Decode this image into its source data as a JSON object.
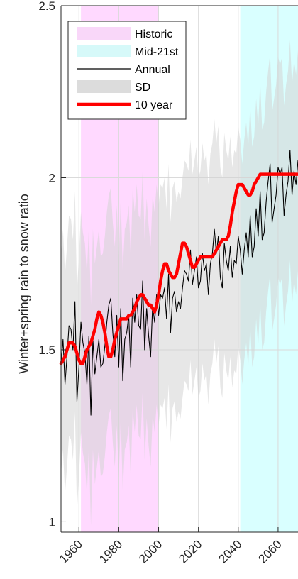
{
  "chart_data": {
    "type": "line",
    "title": "",
    "xlabel": "",
    "ylabel": "Winter+spring rain to snow ratio",
    "xlim": [
      1951,
      2070
    ],
    "ylim": [
      0.97,
      2.5
    ],
    "x_ticks": [
      1960,
      1980,
      2000,
      2020,
      2040,
      2060
    ],
    "x_tick_labels": [
      "1960",
      "1980",
      "2000",
      "2020",
      "2040",
      "2060"
    ],
    "y_ticks": [
      1,
      1.5,
      2,
      2.5
    ],
    "y_tick_labels": [
      "1",
      "1.5",
      "2",
      "2.5"
    ],
    "grid": true,
    "legend_position": "top-left",
    "legend": [
      {
        "key": "historic",
        "label": "Historic",
        "style": "patch",
        "color": "#f9d7f9"
      },
      {
        "key": "mid21",
        "label": "Mid-21st",
        "style": "patch",
        "color": "#d6f9f9"
      },
      {
        "key": "annual",
        "label": "Annual",
        "style": "line",
        "color": "#000000"
      },
      {
        "key": "sd",
        "label": "SD",
        "style": "patch",
        "color": "#dcdcdc"
      },
      {
        "key": "tenyear",
        "label": "10 year",
        "style": "thickline",
        "color": "#ff0000"
      }
    ],
    "shaded_periods": [
      {
        "name": "Historic",
        "x_start": 1961,
        "x_end": 2000,
        "color": "#ff00ff",
        "opacity": 0.15
      },
      {
        "name": "Mid-21st",
        "x_start": 2041,
        "x_end": 2070,
        "color": "#00ffff",
        "opacity": 0.15
      }
    ],
    "series": [
      {
        "name": "Annual",
        "color": "#000000",
        "x": [
          1951,
          1952,
          1953,
          1954,
          1955,
          1956,
          1957,
          1958,
          1959,
          1960,
          1961,
          1962,
          1963,
          1964,
          1965,
          1966,
          1967,
          1968,
          1969,
          1970,
          1971,
          1972,
          1973,
          1974,
          1975,
          1976,
          1977,
          1978,
          1979,
          1980,
          1981,
          1982,
          1983,
          1984,
          1985,
          1986,
          1987,
          1988,
          1989,
          1990,
          1991,
          1992,
          1993,
          1994,
          1995,
          1996,
          1997,
          1998,
          1999,
          2000,
          2001,
          2002,
          2003,
          2004,
          2005,
          2006,
          2007,
          2008,
          2009,
          2010,
          2011,
          2012,
          2013,
          2014,
          2015,
          2016,
          2017,
          2018,
          2019,
          2020,
          2021,
          2022,
          2023,
          2024,
          2025,
          2026,
          2027,
          2028,
          2029,
          2030,
          2031,
          2032,
          2033,
          2034,
          2035,
          2036,
          2037,
          2038,
          2039,
          2040,
          2041,
          2042,
          2043,
          2044,
          2045,
          2046,
          2047,
          2048,
          2049,
          2050,
          2051,
          2052,
          2053,
          2054,
          2055,
          2056,
          2057,
          2058,
          2059,
          2060,
          2061,
          2062,
          2063,
          2064,
          2065,
          2066,
          2067,
          2068,
          2069,
          2070
        ],
        "y": [
          1.46,
          1.53,
          1.4,
          1.48,
          1.57,
          1.56,
          1.5,
          1.64,
          1.35,
          1.45,
          1.58,
          1.52,
          1.49,
          1.4,
          1.54,
          1.31,
          1.53,
          1.43,
          1.48,
          1.53,
          1.45,
          1.46,
          1.51,
          1.58,
          1.63,
          1.65,
          1.55,
          1.48,
          1.6,
          1.45,
          1.62,
          1.41,
          1.53,
          1.55,
          1.6,
          1.45,
          1.65,
          1.58,
          1.66,
          1.57,
          1.56,
          1.7,
          1.5,
          1.62,
          1.54,
          1.48,
          1.63,
          1.58,
          1.66,
          1.6,
          1.66,
          1.65,
          1.68,
          1.59,
          1.72,
          1.55,
          1.65,
          1.67,
          1.61,
          1.64,
          1.62,
          1.68,
          1.73,
          1.72,
          1.7,
          1.79,
          1.69,
          1.73,
          1.77,
          1.68,
          1.7,
          1.78,
          1.73,
          1.75,
          1.66,
          1.75,
          1.78,
          1.85,
          1.78,
          1.83,
          1.71,
          1.68,
          1.81,
          1.76,
          1.73,
          1.8,
          1.71,
          1.76,
          1.75,
          1.83,
          1.79,
          1.72,
          1.79,
          1.84,
          1.77,
          1.89,
          1.77,
          1.8,
          1.91,
          1.83,
          1.96,
          1.82,
          1.84,
          1.93,
          1.99,
          2.04,
          1.87,
          1.91,
          1.95,
          2.03,
          2.01,
          2.03,
          1.89,
          1.95,
          1.99,
          2.08,
          1.95,
          2.02,
          1.98,
          2.05
        ]
      },
      {
        "name": "10 year",
        "color": "#ff0000",
        "x": [
          1951,
          1952,
          1953,
          1954,
          1955,
          1956,
          1957,
          1958,
          1959,
          1960,
          1961,
          1962,
          1963,
          1964,
          1965,
          1966,
          1967,
          1968,
          1969,
          1970,
          1971,
          1972,
          1973,
          1974,
          1975,
          1976,
          1977,
          1978,
          1979,
          1980,
          1981,
          1982,
          1983,
          1984,
          1985,
          1986,
          1987,
          1988,
          1989,
          1990,
          1991,
          1992,
          1993,
          1994,
          1995,
          1996,
          1997,
          1998,
          1999,
          2000,
          2001,
          2002,
          2003,
          2004,
          2005,
          2006,
          2007,
          2008,
          2009,
          2010,
          2011,
          2012,
          2013,
          2014,
          2015,
          2016,
          2017,
          2018,
          2019,
          2020,
          2021,
          2022,
          2023,
          2024,
          2025,
          2026,
          2027,
          2028,
          2029,
          2030,
          2031,
          2032,
          2033,
          2034,
          2035,
          2036,
          2037,
          2038,
          2039,
          2040,
          2041,
          2042,
          2043,
          2044,
          2045,
          2046,
          2047,
          2048,
          2049,
          2050,
          2051,
          2052,
          2053,
          2054,
          2055,
          2056,
          2057,
          2058,
          2059,
          2060,
          2061,
          2062,
          2063,
          2064,
          2065,
          2066,
          2067,
          2068,
          2069,
          2070
        ],
        "y": [
          1.46,
          1.47,
          1.48,
          1.5,
          1.52,
          1.52,
          1.52,
          1.51,
          1.49,
          1.47,
          1.46,
          1.46,
          1.48,
          1.5,
          1.51,
          1.52,
          1.54,
          1.56,
          1.59,
          1.61,
          1.6,
          1.58,
          1.55,
          1.51,
          1.48,
          1.48,
          1.5,
          1.53,
          1.55,
          1.57,
          1.59,
          1.59,
          1.59,
          1.59,
          1.6,
          1.6,
          1.61,
          1.62,
          1.64,
          1.65,
          1.66,
          1.66,
          1.65,
          1.64,
          1.63,
          1.63,
          1.62,
          1.61,
          1.63,
          1.66,
          1.7,
          1.73,
          1.75,
          1.75,
          1.73,
          1.72,
          1.71,
          1.71,
          1.72,
          1.75,
          1.78,
          1.81,
          1.81,
          1.8,
          1.78,
          1.76,
          1.74,
          1.74,
          1.75,
          1.76,
          1.77,
          1.77,
          1.77,
          1.77,
          1.77,
          1.77,
          1.77,
          1.78,
          1.79,
          1.8,
          1.81,
          1.82,
          1.82,
          1.82,
          1.83,
          1.86,
          1.9,
          1.93,
          1.96,
          1.98,
          1.98,
          1.98,
          1.97,
          1.96,
          1.95,
          1.95,
          1.96,
          1.98,
          1.99,
          2.0,
          2.01,
          2.01,
          2.01,
          2.01,
          2.01,
          2.01,
          2.01,
          2.01,
          2.01,
          2.01,
          2.01,
          2.01,
          2.01,
          2.01,
          2.01,
          2.01,
          2.01,
          2.01,
          2.01,
          2.01
        ]
      }
    ],
    "sd_band": {
      "name": "SD",
      "color": "#d3d3d3",
      "x": [
        1951,
        1952,
        1953,
        1954,
        1955,
        1956,
        1957,
        1958,
        1959,
        1960,
        1961,
        1962,
        1963,
        1964,
        1965,
        1966,
        1967,
        1968,
        1969,
        1970,
        1971,
        1972,
        1973,
        1974,
        1975,
        1976,
        1977,
        1978,
        1979,
        1980,
        1981,
        1982,
        1983,
        1984,
        1985,
        1986,
        1987,
        1988,
        1989,
        1990,
        1991,
        1992,
        1993,
        1994,
        1995,
        1996,
        1997,
        1998,
        1999,
        2000,
        2001,
        2002,
        2003,
        2004,
        2005,
        2006,
        2007,
        2008,
        2009,
        2010,
        2011,
        2012,
        2013,
        2014,
        2015,
        2016,
        2017,
        2018,
        2019,
        2020,
        2021,
        2022,
        2023,
        2024,
        2025,
        2026,
        2027,
        2028,
        2029,
        2030,
        2031,
        2032,
        2033,
        2034,
        2035,
        2036,
        2037,
        2038,
        2039,
        2040,
        2041,
        2042,
        2043,
        2044,
        2045,
        2046,
        2047,
        2048,
        2049,
        2050,
        2051,
        2052,
        2053,
        2054,
        2055,
        2056,
        2057,
        2058,
        2059,
        2060,
        2061,
        2062,
        2063,
        2064,
        2065,
        2066,
        2067,
        2068,
        2069,
        2070
      ],
      "upper": [
        1.78,
        1.85,
        1.72,
        1.8,
        1.89,
        1.88,
        1.82,
        1.96,
        1.67,
        1.77,
        1.9,
        1.84,
        1.81,
        1.72,
        1.86,
        1.63,
        1.85,
        1.75,
        1.8,
        1.85,
        1.77,
        1.78,
        1.83,
        1.9,
        1.95,
        1.97,
        1.87,
        1.8,
        1.92,
        1.77,
        1.94,
        1.73,
        1.85,
        1.87,
        1.92,
        1.77,
        1.97,
        1.9,
        1.98,
        1.89,
        1.88,
        2.02,
        1.82,
        1.94,
        1.86,
        1.8,
        1.95,
        1.9,
        1.98,
        1.92,
        1.98,
        1.97,
        2.0,
        1.91,
        2.04,
        1.87,
        1.97,
        1.99,
        1.93,
        1.96,
        1.94,
        2.0,
        2.05,
        2.04,
        2.02,
        2.11,
        2.01,
        2.05,
        2.09,
        2.0,
        2.02,
        2.1,
        2.05,
        2.07,
        1.98,
        2.07,
        2.1,
        2.17,
        2.1,
        2.15,
        2.03,
        2.0,
        2.13,
        2.08,
        2.05,
        2.12,
        2.03,
        2.08,
        2.07,
        2.15,
        2.11,
        2.04,
        2.11,
        2.16,
        2.09,
        2.21,
        2.09,
        2.12,
        2.23,
        2.15,
        2.28,
        2.14,
        2.16,
        2.25,
        2.31,
        2.36,
        2.19,
        2.23,
        2.27,
        2.35,
        2.33,
        2.35,
        2.21,
        2.27,
        2.31,
        2.4,
        2.27,
        2.34,
        2.3,
        2.37
      ],
      "lower": [
        1.14,
        1.21,
        1.08,
        1.16,
        1.25,
        1.24,
        1.18,
        1.32,
        1.03,
        1.13,
        1.26,
        1.2,
        1.17,
        1.08,
        1.22,
        0.99,
        1.21,
        1.11,
        1.16,
        1.21,
        1.13,
        1.14,
        1.19,
        1.26,
        1.31,
        1.33,
        1.23,
        1.16,
        1.28,
        1.13,
        1.3,
        1.09,
        1.21,
        1.23,
        1.28,
        1.13,
        1.33,
        1.26,
        1.34,
        1.25,
        1.24,
        1.38,
        1.18,
        1.3,
        1.22,
        1.16,
        1.31,
        1.26,
        1.34,
        1.28,
        1.34,
        1.33,
        1.36,
        1.27,
        1.4,
        1.23,
        1.33,
        1.35,
        1.29,
        1.32,
        1.3,
        1.36,
        1.41,
        1.4,
        1.38,
        1.47,
        1.37,
        1.41,
        1.45,
        1.36,
        1.38,
        1.46,
        1.41,
        1.43,
        1.34,
        1.43,
        1.46,
        1.53,
        1.46,
        1.51,
        1.39,
        1.36,
        1.49,
        1.44,
        1.41,
        1.48,
        1.39,
        1.44,
        1.43,
        1.51,
        1.47,
        1.4,
        1.47,
        1.52,
        1.45,
        1.57,
        1.45,
        1.48,
        1.59,
        1.51,
        1.64,
        1.5,
        1.52,
        1.61,
        1.67,
        1.72,
        1.55,
        1.59,
        1.63,
        1.71,
        1.69,
        1.71,
        1.57,
        1.63,
        1.67,
        1.76,
        1.63,
        1.7,
        1.66,
        1.73
      ]
    }
  }
}
